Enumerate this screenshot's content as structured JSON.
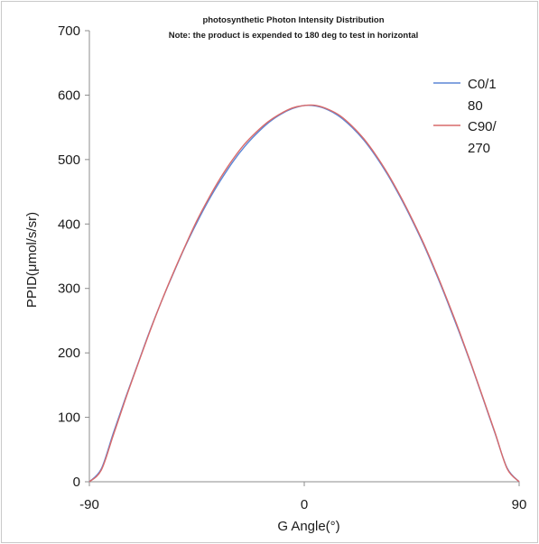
{
  "chart_data": {
    "type": "line",
    "title": "photosynthetic Photon Intensity Distribution",
    "subtitle": "Note: the product is expended to 180 deg to test in horizontal",
    "xlabel": "G Angle(°)",
    "ylabel": "PPID(μmol/s/sr)",
    "xlim": [
      -90,
      90
    ],
    "ylim": [
      0,
      700
    ],
    "x_ticks": [
      -90,
      0,
      90
    ],
    "y_ticks": [
      0,
      100,
      200,
      300,
      400,
      500,
      600,
      700
    ],
    "grid": false,
    "legend_position": "top-right",
    "x": [
      -90,
      -85,
      -80,
      -75,
      -70,
      -65,
      -60,
      -55,
      -50,
      -45,
      -40,
      -35,
      -30,
      -25,
      -20,
      -15,
      -10,
      -5,
      0,
      5,
      10,
      15,
      20,
      25,
      30,
      35,
      40,
      45,
      50,
      55,
      60,
      65,
      70,
      75,
      80,
      85,
      90
    ],
    "series": [
      {
        "name": "C0/180",
        "legend_lines": [
          "C0/1",
          "80"
        ],
        "color": "#5b86d6",
        "values": [
          0,
          20,
          75,
          129,
          180,
          231,
          278,
          322,
          364,
          402,
          437,
          468,
          496,
          520,
          540,
          557,
          570,
          579,
          584,
          583,
          577,
          566,
          550,
          530,
          505,
          476,
          443,
          407,
          368,
          325,
          279,
          231,
          181,
          128,
          74,
          21,
          0
        ]
      },
      {
        "name": "C90/270",
        "legend_lines": [
          "C90/",
          "270"
        ],
        "color": "#d96a6a",
        "values": [
          0,
          18,
          72,
          127,
          179,
          230,
          278,
          323,
          365,
          405,
          440,
          472,
          500,
          524,
          543,
          559,
          571,
          580,
          584,
          584,
          578,
          568,
          552,
          532,
          507,
          478,
          445,
          409,
          370,
          327,
          281,
          233,
          182,
          129,
          75,
          20,
          0
        ]
      }
    ]
  }
}
